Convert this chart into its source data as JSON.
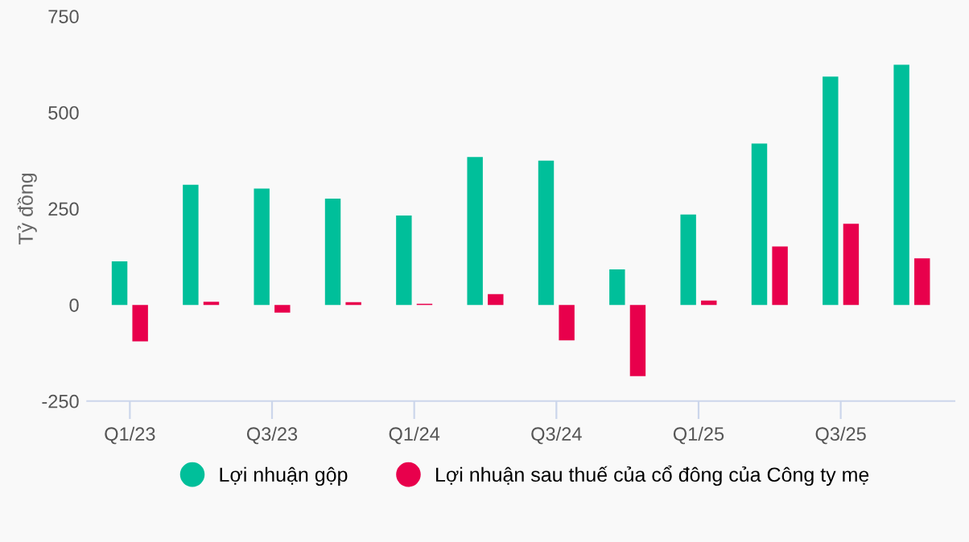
{
  "chart_data": {
    "type": "bar",
    "ylabel": "Tỷ đồng",
    "categories": [
      "Q1/23",
      null,
      "Q3/23",
      null,
      "Q1/24",
      null,
      "Q3/24",
      null,
      "Q1/25",
      null,
      "Q3/25",
      null
    ],
    "series": [
      {
        "name": "Lợi nhuận gộp",
        "color": "#00bf9a",
        "values": [
          113,
          312,
          302,
          276,
          232,
          384,
          375,
          92,
          235,
          419,
          593,
          624
        ]
      },
      {
        "name": "Lợi nhuận sau thuế của cổ đông của Công ty mẹ",
        "color": "#e8004c",
        "values": [
          -95,
          8,
          -20,
          7,
          3,
          28,
          -92,
          -185,
          11,
          152,
          211,
          121
        ]
      }
    ],
    "ylim": [
      -250,
      750
    ],
    "yticks": [
      -250,
      0,
      250,
      500,
      750
    ],
    "grid": false,
    "legend": "bottom"
  }
}
